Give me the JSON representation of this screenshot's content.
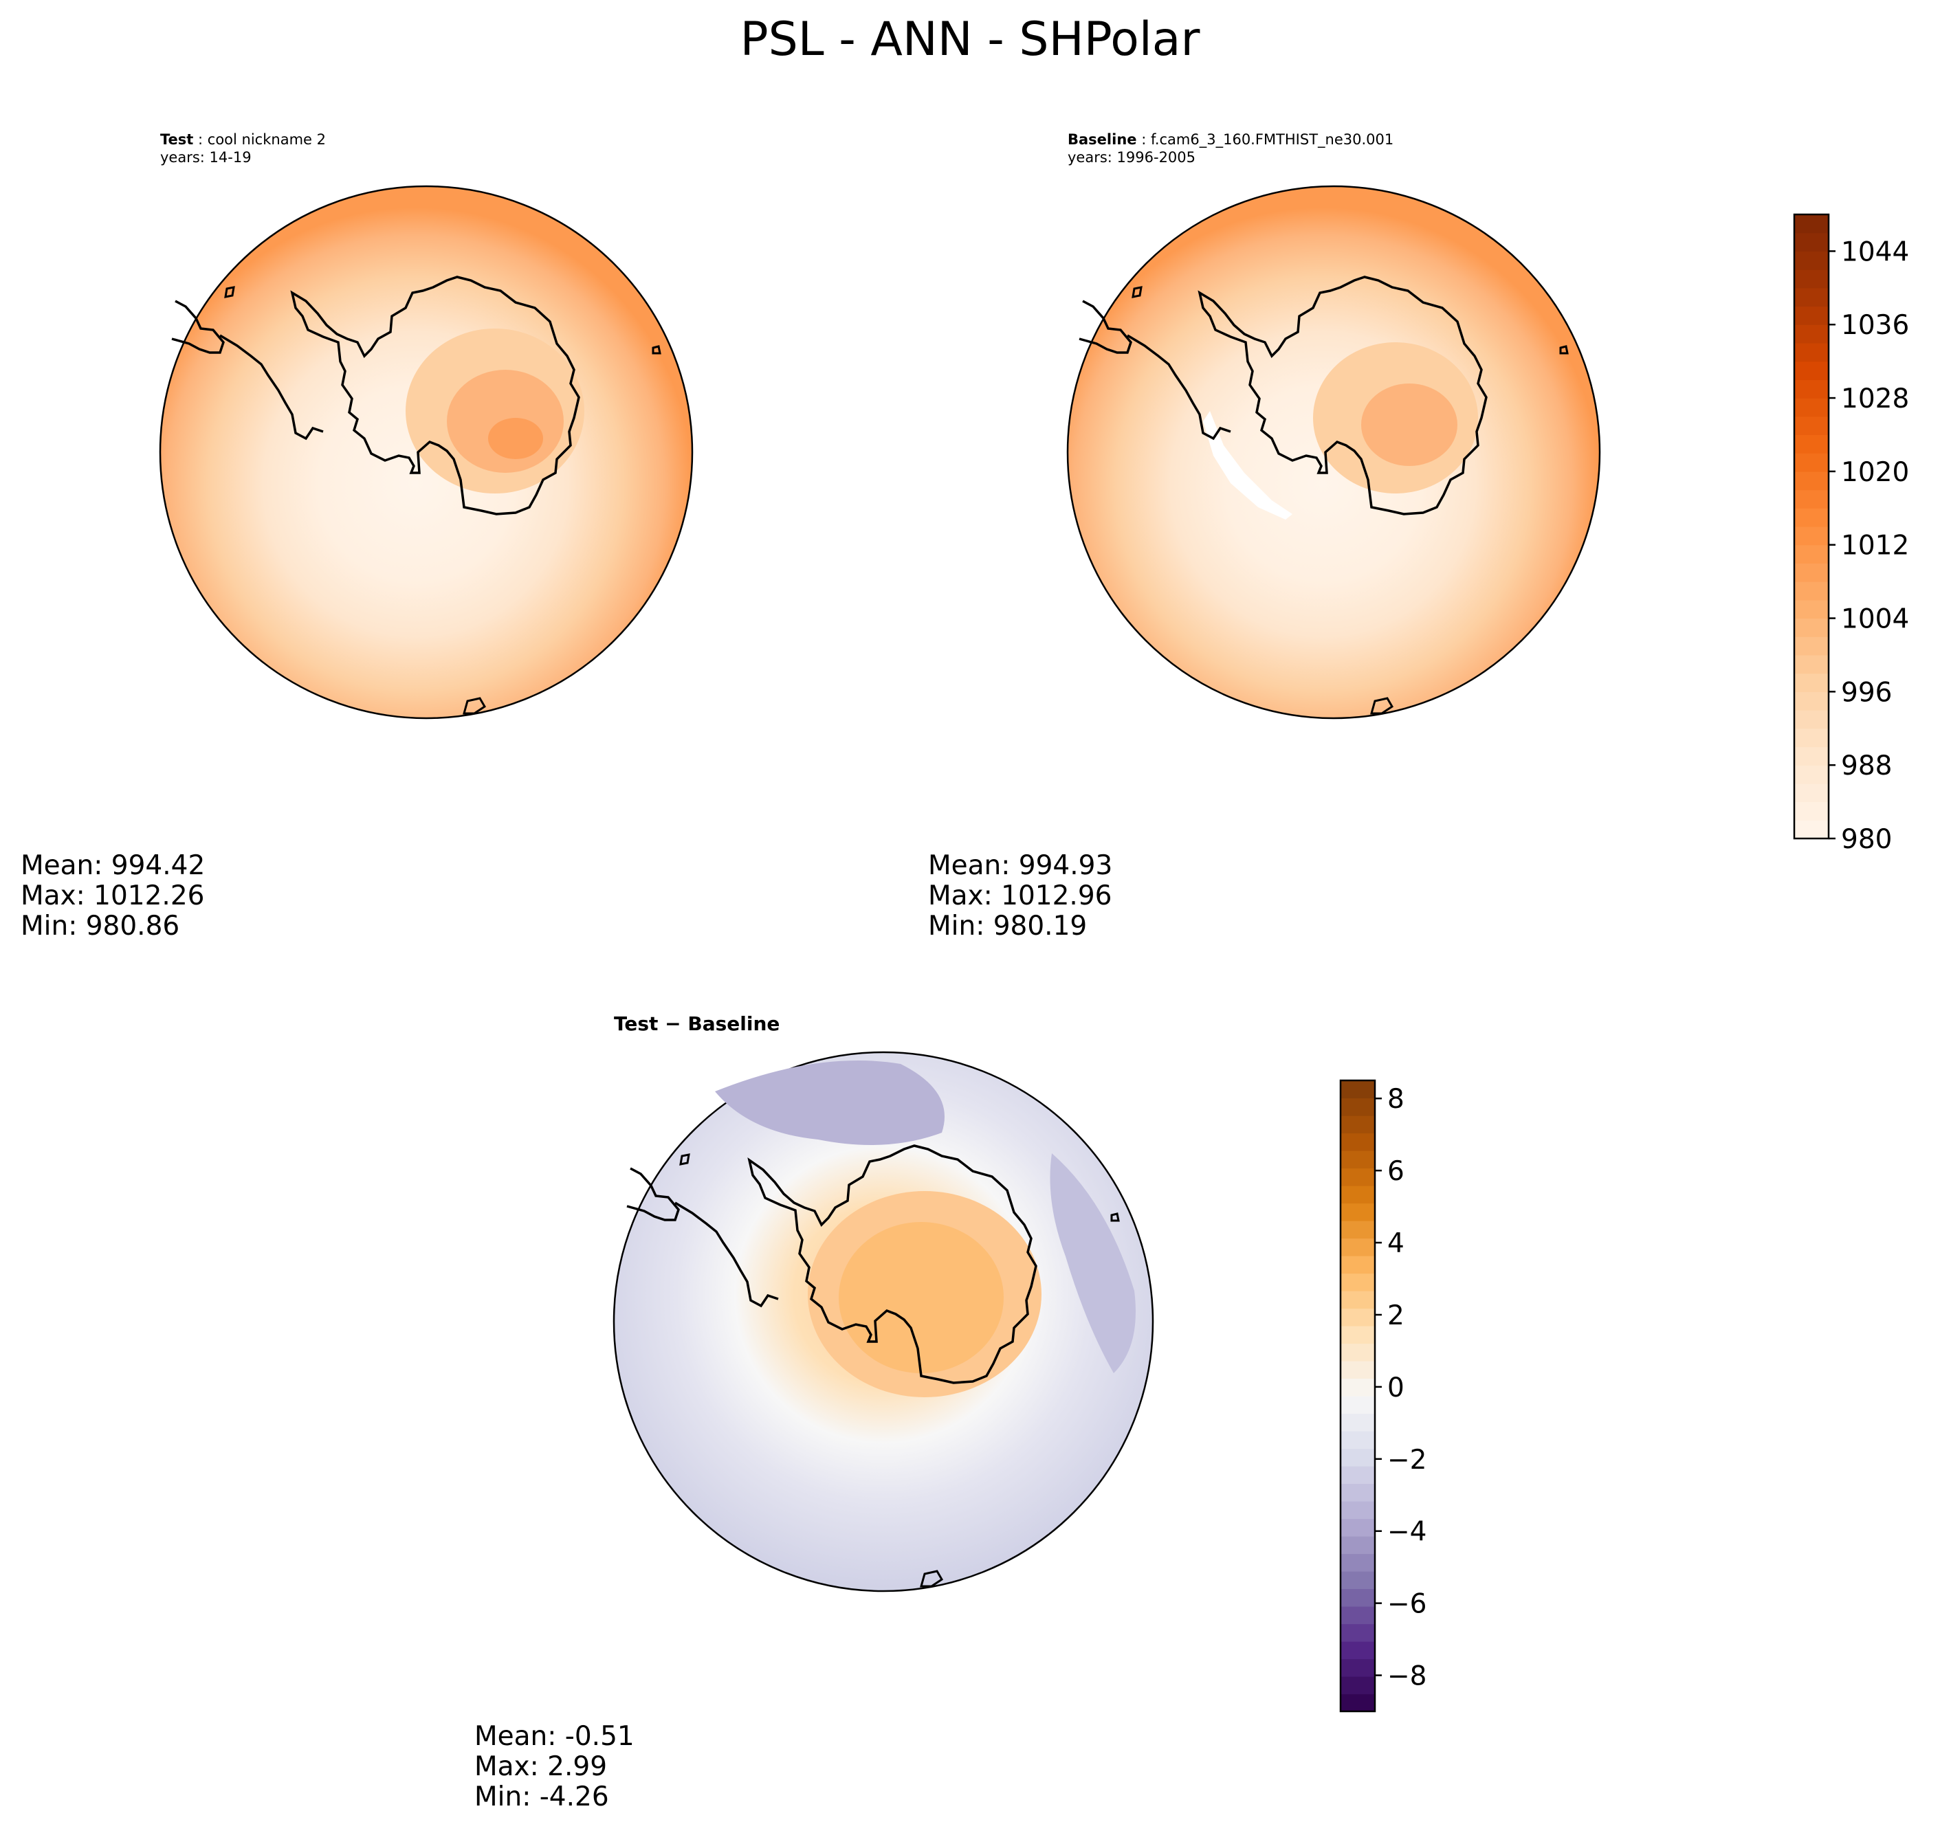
{
  "figure": {
    "title": "PSL - ANN - SHPolar"
  },
  "panels": {
    "test": {
      "label": "Test",
      "sep": ":",
      "name": "cool nickname 2",
      "years": "years: 14-19",
      "stats": {
        "mean": "Mean: 994.42",
        "max": "Max: 1012.26",
        "min": "Min: 980.86"
      }
    },
    "baseline": {
      "label": "Baseline",
      "sep": ":",
      "name": "f.cam6_3_160.FMTHIST_ne30.001",
      "years": "years: 1996-2005",
      "stats": {
        "mean": "Mean: 994.93",
        "max": "Max: 1012.96",
        "min": "Min: 980.19"
      }
    },
    "diff": {
      "label_a": "Test",
      "minus": "−",
      "label_b": "Baseline",
      "stats": {
        "mean": "Mean: -0.51",
        "max": "Max:  2.99",
        "min": "Min: -4.26"
      }
    }
  },
  "chart_data": [
    {
      "type": "heatmap",
      "projection": "south-polar-stereographic",
      "variable": "PSL",
      "panel": "test",
      "mean": 994.42,
      "max": 1012.26,
      "min": 980.86,
      "colormap": "Oranges",
      "levels": [
        980,
        1048
      ],
      "colorbar": "shared"
    },
    {
      "type": "heatmap",
      "projection": "south-polar-stereographic",
      "variable": "PSL",
      "panel": "baseline",
      "mean": 994.93,
      "max": 1012.96,
      "min": 980.19,
      "colormap": "Oranges",
      "colorbar_ticks": [
        "980",
        "988",
        "996",
        "1004",
        "1012",
        "1020",
        "1028",
        "1036",
        "1044"
      ],
      "colorbar_range": [
        980,
        1048
      ],
      "colorbar_location": "right"
    },
    {
      "type": "heatmap",
      "projection": "south-polar-stereographic",
      "variable": "PSL",
      "panel": "test-minus-baseline",
      "mean": -0.51,
      "max": 2.99,
      "min": -4.26,
      "colormap": "PuOr_r",
      "colorbar_ticks": [
        "−8",
        "−6",
        "−4",
        "−2",
        "0",
        "2",
        "4",
        "6",
        "8"
      ],
      "colorbar_range": [
        -9,
        8.5
      ],
      "colorbar_location": "right"
    }
  ],
  "colors": {
    "orange_ramp": [
      "#fff5eb",
      "#fee6ce",
      "#fdd0a2",
      "#fdae6b",
      "#fd8d3c",
      "#f16913",
      "#d94801",
      "#a63603",
      "#7f2704"
    ],
    "diff_ramp": [
      "#2d004b",
      "#542788",
      "#8073ac",
      "#b2abd2",
      "#d8daeb",
      "#f7f7f7",
      "#fee0b6",
      "#fdb863",
      "#e08214",
      "#b35806",
      "#7f3b08"
    ]
  }
}
